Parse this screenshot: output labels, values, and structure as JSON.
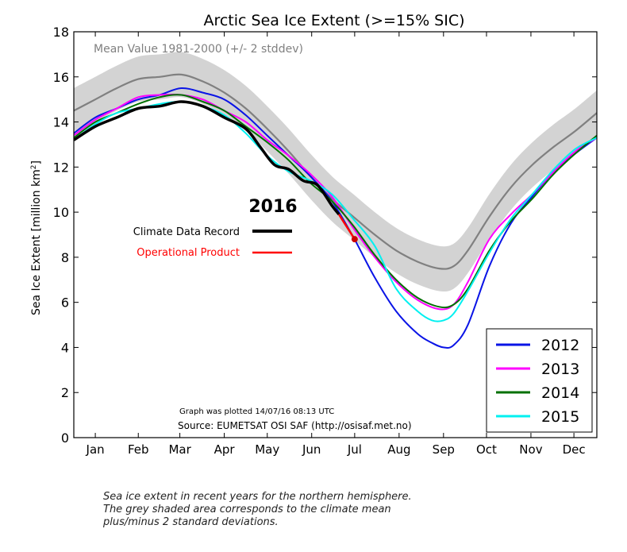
{
  "chart_data": {
    "type": "line",
    "title": "Arctic Sea Ice Extent (>=15% SIC)",
    "ylabel": "Sea Ice Extent [million km",
    "ylabel_sup": "2",
    "ylabel_close": "]",
    "ylim": [
      0,
      18
    ],
    "xlim": [
      0,
      365
    ],
    "y_ticks": [
      0,
      2,
      4,
      6,
      8,
      10,
      12,
      14,
      16,
      18
    ],
    "x_ticks": [
      {
        "label": "Jan",
        "day": 15
      },
      {
        "label": "Feb",
        "day": 45
      },
      {
        "label": "Mar",
        "day": 74
      },
      {
        "label": "Apr",
        "day": 105
      },
      {
        "label": "May",
        "day": 135
      },
      {
        "label": "Jun",
        "day": 166
      },
      {
        "label": "Jul",
        "day": 196
      },
      {
        "label": "Aug",
        "day": 227
      },
      {
        "label": "Sep",
        "day": 258
      },
      {
        "label": "Oct",
        "day": 288
      },
      {
        "label": "Nov",
        "day": 319
      },
      {
        "label": "Dec",
        "day": 349
      }
    ],
    "grid": false,
    "mean_label": "Mean Value 1981-2000 (+/- 2 stddev)",
    "mean": {
      "x": [
        0,
        15,
        30,
        45,
        60,
        75,
        90,
        105,
        120,
        135,
        150,
        165,
        180,
        195,
        210,
        225,
        240,
        255,
        265,
        275,
        290,
        305,
        320,
        335,
        350,
        365
      ],
      "values": [
        14.5,
        15.0,
        15.5,
        15.9,
        16.0,
        16.1,
        15.8,
        15.3,
        14.6,
        13.7,
        12.7,
        11.6,
        10.6,
        9.8,
        9.0,
        8.3,
        7.8,
        7.5,
        7.6,
        8.3,
        9.8,
        11.1,
        12.1,
        12.9,
        13.6,
        14.4
      ],
      "stddev2": 1.0
    },
    "series": [
      {
        "name": "2012",
        "color": "#0a14e6",
        "x": [
          0,
          15,
          30,
          45,
          60,
          75,
          90,
          105,
          120,
          135,
          150,
          165,
          180,
          195,
          210,
          225,
          240,
          250,
          258,
          265,
          275,
          290,
          305,
          320,
          335,
          350,
          365
        ],
        "values": [
          13.5,
          14.2,
          14.6,
          15.0,
          15.2,
          15.5,
          15.3,
          15.0,
          14.3,
          13.4,
          12.5,
          11.6,
          10.5,
          8.9,
          7.1,
          5.6,
          4.6,
          4.2,
          4.0,
          4.1,
          5.0,
          7.6,
          9.5,
          10.7,
          11.8,
          12.6,
          13.3
        ]
      },
      {
        "name": "2013",
        "color": "#ff00ff",
        "x": [
          0,
          15,
          30,
          45,
          60,
          75,
          90,
          105,
          120,
          135,
          150,
          165,
          180,
          195,
          210,
          225,
          240,
          255,
          265,
          275,
          290,
          305,
          320,
          335,
          350,
          365
        ],
        "values": [
          13.4,
          14.1,
          14.6,
          15.1,
          15.2,
          15.2,
          15.0,
          14.5,
          14.0,
          13.2,
          12.5,
          11.7,
          10.7,
          9.3,
          8.0,
          6.9,
          6.1,
          5.7,
          5.9,
          6.9,
          8.8,
          9.9,
          10.8,
          11.8,
          12.7,
          13.3
        ]
      },
      {
        "name": "2014",
        "color": "#007000",
        "x": [
          0,
          15,
          30,
          45,
          60,
          75,
          90,
          105,
          120,
          135,
          150,
          165,
          180,
          195,
          210,
          225,
          240,
          255,
          265,
          275,
          290,
          305,
          320,
          335,
          350,
          365
        ],
        "values": [
          13.3,
          14.0,
          14.4,
          14.8,
          15.1,
          15.2,
          14.9,
          14.5,
          13.8,
          13.1,
          12.3,
          11.3,
          10.5,
          9.4,
          8.1,
          7.0,
          6.2,
          5.8,
          5.9,
          6.6,
          8.3,
          9.6,
          10.6,
          11.7,
          12.6,
          13.4
        ]
      },
      {
        "name": "2015",
        "color": "#00f0f0",
        "x": [
          0,
          15,
          30,
          45,
          60,
          75,
          90,
          105,
          120,
          135,
          150,
          165,
          180,
          195,
          210,
          225,
          240,
          250,
          258,
          265,
          275,
          290,
          305,
          320,
          335,
          350,
          365
        ],
        "values": [
          13.2,
          13.9,
          14.4,
          14.6,
          14.8,
          14.9,
          14.7,
          14.3,
          13.5,
          12.5,
          11.8,
          11.4,
          10.8,
          9.7,
          8.5,
          6.6,
          5.6,
          5.2,
          5.2,
          5.5,
          6.5,
          8.2,
          9.7,
          10.8,
          11.9,
          12.8,
          13.3
        ]
      }
    ],
    "series_2016_label": "2016",
    "series_2016_cdr": {
      "name": "Climate Data Record",
      "color": "#000000",
      "x": [
        0,
        15,
        30,
        45,
        60,
        75,
        90,
        105,
        120,
        130,
        140,
        150,
        160,
        170,
        180,
        185
      ],
      "values": [
        13.2,
        13.8,
        14.2,
        14.6,
        14.7,
        14.9,
        14.7,
        14.2,
        13.7,
        12.9,
        12.1,
        11.9,
        11.4,
        11.2,
        10.3,
        9.9
      ]
    },
    "series_2016_op": {
      "name": "Operational Product",
      "color": "#ff0000",
      "x": [
        185,
        190,
        195,
        196
      ],
      "values": [
        9.9,
        9.4,
        8.9,
        8.8
      ]
    },
    "legend_position": "lower-right",
    "plot_note": "Graph was plotted 14/07/16 08:13 UTC",
    "source": "Source: EUMETSAT OSI SAF (http://osisaf.met.no)"
  },
  "caption": [
    "Sea ice extent in recent years for the northern hemisphere.",
    "The grey shaded area corresponds to the climate mean",
    "plus/minus 2 standard deviations."
  ]
}
